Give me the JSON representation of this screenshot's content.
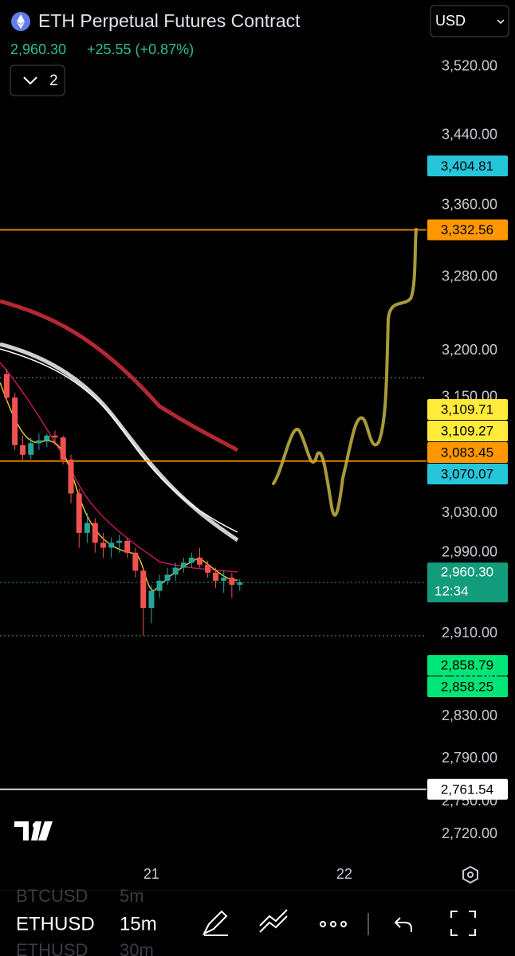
{
  "header": {
    "title": "ETH Perpetual Futures Contract",
    "price": "2,960.30",
    "change": "+25.55 (+0.87%)",
    "currency": "USD",
    "indicators_count": "2"
  },
  "chart_data": {
    "type": "candlestick",
    "x": [
      20.25,
      20.292,
      20.333,
      20.375,
      20.417,
      20.458,
      20.5,
      20.542,
      20.583,
      20.625,
      20.667,
      20.708,
      20.75,
      20.792,
      20.833,
      20.875,
      20.917,
      20.958,
      21,
      21.042,
      21.083,
      21.125,
      21.167,
      21.208,
      21.25,
      21.292,
      21.333,
      21.375,
      21.417,
      21.458
    ],
    "open": [
      3175,
      3150,
      3100,
      3090,
      3102,
      3105,
      3110,
      3108,
      3085,
      3050,
      3010,
      3020,
      3000,
      2995,
      3000,
      3002,
      2990,
      2972,
      2935,
      2952,
      2962,
      2968,
      2975,
      2980,
      2985,
      2978,
      2970,
      2962,
      2965,
      2958
    ],
    "high": [
      3180,
      3155,
      3110,
      3108,
      3112,
      3112,
      3115,
      3110,
      3090,
      3055,
      3030,
      3025,
      3010,
      3005,
      3008,
      3005,
      2995,
      2975,
      2958,
      2968,
      2975,
      2980,
      2985,
      2990,
      2995,
      2982,
      2975,
      2972,
      2970,
      2964
    ],
    "low": [
      3145,
      3095,
      3085,
      3085,
      3095,
      3098,
      3100,
      3080,
      3040,
      2995,
      3000,
      2990,
      2985,
      2985,
      2990,
      2985,
      2965,
      2908,
      2920,
      2945,
      2958,
      2962,
      2970,
      2975,
      2975,
      2965,
      2955,
      2950,
      2945,
      2952
    ],
    "close": [
      3150,
      3100,
      3090,
      3102,
      3105,
      3110,
      3108,
      3085,
      3050,
      3010,
      3020,
      3000,
      2995,
      3000,
      3002,
      2990,
      2972,
      2935,
      2952,
      2962,
      2968,
      2975,
      2980,
      2985,
      2978,
      2970,
      2962,
      2965,
      2958,
      2960.3
    ],
    "up_color": "#26a69a",
    "down_color": "#ef5350",
    "xlim": [
      20.215,
      22.426
    ],
    "xticks": [
      {
        "value": 21,
        "label": "21"
      },
      {
        "value": 22,
        "label": "22"
      }
    ],
    "ylim": [
      2700,
      3600
    ],
    "log_scale": true,
    "yticks": [
      {
        "value": 3520,
        "label": "3,520.00"
      },
      {
        "value": 3440,
        "label": "3,440.00"
      },
      {
        "value": 3360,
        "label": "3,360.00"
      },
      {
        "value": 3280,
        "label": "3,280.00"
      },
      {
        "value": 3200,
        "label": "3,200.00"
      },
      {
        "value": 3150,
        "label": "3,150.00"
      },
      {
        "value": 3030,
        "label": "3,030.00"
      },
      {
        "value": 2990,
        "label": "2,990.00"
      },
      {
        "value": 2910,
        "label": "2,910.00"
      },
      {
        "value": 2870,
        "label": "2,870.00"
      },
      {
        "value": 2830,
        "label": "2,830.00"
      },
      {
        "value": 2790,
        "label": "2,790.00"
      },
      {
        "value": 2750,
        "label": "2,750.00"
      },
      {
        "value": 2720,
        "label": "2,720.00"
      }
    ],
    "price_labels": [
      {
        "value": 3404.81,
        "label": "3,404.81",
        "color": "#26c6da",
        "text_color": "#000000",
        "line": false
      },
      {
        "value": 3332.56,
        "label": "3,332.56",
        "color": "#ff9800",
        "text_color": "#000000",
        "line": true
      },
      {
        "value": 3109.71,
        "label": "3,109.71",
        "color": "#ffeb3b",
        "text_color": "#000000",
        "line": false
      },
      {
        "value": 3109.27,
        "label": "3,109.27",
        "color": "#ffeb3b",
        "text_color": "#000000",
        "line": false
      },
      {
        "value": 3083.45,
        "label": "3,083.45",
        "color": "#ff9800",
        "text_color": "#000000",
        "line": true
      },
      {
        "value": 3070.07,
        "label": "3,070.07",
        "color": "#26c6da",
        "text_color": "#000000",
        "line": false
      },
      {
        "value": 2960.3,
        "label": "2,960.30",
        "countdown": "12:34",
        "color": "#139c7c",
        "text_color": "#ffffff",
        "line": false
      },
      {
        "value": 2858.79,
        "label": "2,858.79",
        "color": "#00e676",
        "text_color": "#000000",
        "line": false
      },
      {
        "value": 2858.25,
        "label": "2,858.25",
        "color": "#00e676",
        "text_color": "#000000",
        "line": false
      },
      {
        "value": 2761.54,
        "label": "2,761.54",
        "color": "#ffffff",
        "text_color": "#000000",
        "line": true
      }
    ]
  },
  "toolbar": {
    "symbols": [
      "BTCUSD",
      "ETHUSD",
      "ETHUSD"
    ],
    "intervals": [
      "5m",
      "15m",
      "30m"
    ]
  }
}
